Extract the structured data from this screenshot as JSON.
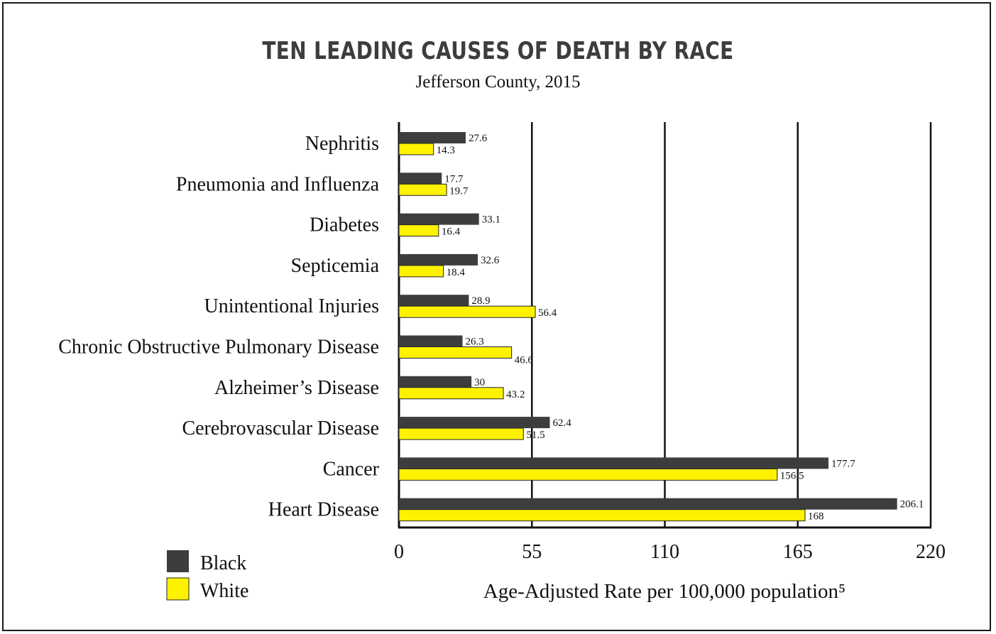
{
  "chart_data": {
    "type": "bar",
    "orientation": "horizontal",
    "title": "TEN LEADING CAUSES OF DEATH BY RACE",
    "subtitle": "Jefferson County, 2015",
    "xlabel": "Age-Adjusted Rate per 100,000 population⁵",
    "xlim": [
      0,
      220
    ],
    "xticks": [
      "0",
      "55",
      "110",
      "165",
      "220"
    ],
    "grid": true,
    "legend_position": "bottom-left",
    "categories": [
      "Nephritis",
      "Pneumonia and Influenza",
      "Diabetes",
      "Septicemia",
      "Unintentional Injuries",
      "Chronic Obstructive Pulmonary Disease",
      "Alzheimer’s Disease",
      "Cerebrovascular Disease",
      "Cancer",
      "Heart Disease"
    ],
    "series": [
      {
        "name": "Black",
        "color": "#3d3d3d",
        "values": [
          27.6,
          17.7,
          33.1,
          32.6,
          28.9,
          26.3,
          30,
          62.4,
          177.7,
          206.1
        ],
        "labels": [
          "27.6",
          "17.7",
          "33.1",
          "32.6",
          "28.9",
          "26.3",
          "30",
          "62.4",
          "177.7",
          "206.1"
        ]
      },
      {
        "name": "White",
        "color": "#fff200",
        "values": [
          14.3,
          19.7,
          16.4,
          18.4,
          56.4,
          46.6,
          43.2,
          51.5,
          156.5,
          168
        ],
        "labels": [
          "14.3",
          "19.7",
          "16.4",
          "18.4",
          "56.4",
          "46.6",
          "43.2",
          "51.5",
          "156.5",
          "168"
        ]
      }
    ]
  }
}
